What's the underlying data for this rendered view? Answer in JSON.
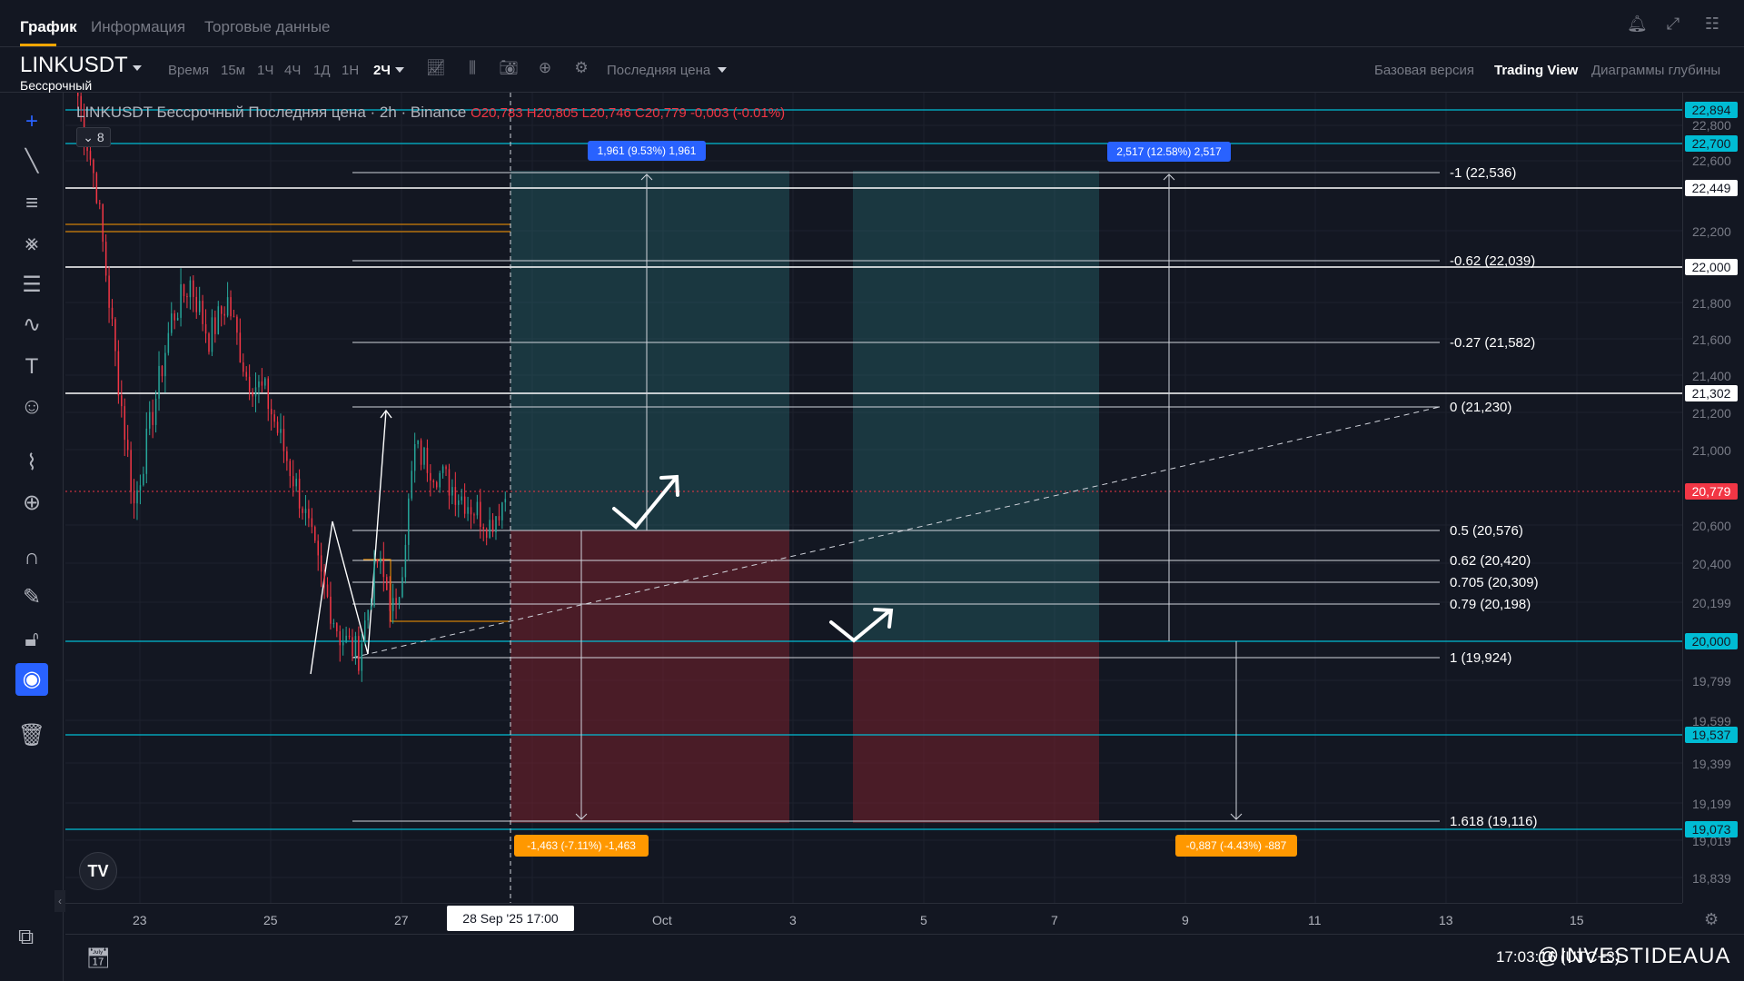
{
  "tabs": [
    "График",
    "Информация",
    "Торговые данные"
  ],
  "symbol": {
    "name": "LINKUSDT",
    "subtitle": "Бессрочный"
  },
  "toolbar": {
    "time_label": "Время",
    "intervals": [
      "15м",
      "1Ч",
      "4Ч",
      "1Д",
      "1Н",
      "2Ч"
    ],
    "selected_interval": "2Ч",
    "price_type": "Последняя цена",
    "views": [
      "Базовая версия",
      "Trading View",
      "Диаграммы глубины"
    ],
    "selected_view": "Trading View"
  },
  "legend": {
    "title": "LINKUSDT Бессрочный Последняя цена · 2h · Binance",
    "ohlc": "O20,783 H20,805 L20,746 C20,779 -0,003 (-0.01%)",
    "indicator_count": "8"
  },
  "price_axis": {
    "ticks": [
      "22,800",
      "22,600",
      "22,200",
      "21,800",
      "21,600",
      "21,400",
      "21,200",
      "21,000",
      "20,600",
      "20,400",
      "20,199",
      "19,799",
      "19,599",
      "19,399",
      "19,199",
      "19,019",
      "18,839"
    ],
    "tags": [
      {
        "label": "22,894",
        "kind": "cyan"
      },
      {
        "label": "22,700",
        "kind": "cyan"
      },
      {
        "label": "22,449",
        "kind": "white"
      },
      {
        "label": "22,000",
        "kind": "white"
      },
      {
        "label": "21,302",
        "kind": "white"
      },
      {
        "label": "20,779",
        "kind": "red"
      },
      {
        "label": "20,000",
        "kind": "cyan"
      },
      {
        "label": "19,537",
        "kind": "cyan"
      },
      {
        "label": "19,073",
        "kind": "cyan"
      }
    ]
  },
  "time_axis": {
    "labels": [
      "23",
      "25",
      "27",
      "Oct",
      "3",
      "5",
      "7",
      "9",
      "11",
      "13",
      "15"
    ],
    "cursor": "28 Sep '25   17:00"
  },
  "fib_levels": [
    {
      "label": "-1 (22,536)"
    },
    {
      "label": "-0.62 (22,039)"
    },
    {
      "label": "-0.27 (21,582)"
    },
    {
      "label": "0 (21,230)"
    },
    {
      "label": "0.5 (20,576)"
    },
    {
      "label": "0.62 (20,420)"
    },
    {
      "label": "0.705 (20,309)"
    },
    {
      "label": "0.79 (20,198)"
    },
    {
      "label": "1 (19,924)"
    },
    {
      "label": "1.618 (19,116)"
    }
  ],
  "position_labels": {
    "long1_target": "1,961 (9.53%) 1,961",
    "long2_target": "2,517 (12.58%) 2,517",
    "long1_stop": "-1,463 (-7.11%) -1,463",
    "long2_stop": "-0,887 (-4.43%) -887"
  },
  "bottom": {
    "time": "17:03:16 (UTC+3)",
    "watermark": "@INVESTIDEAUA"
  },
  "colors": {
    "background": "#131722",
    "cyan_line": "#00bcd4",
    "target_zone": "rgba(38,104,110,0.45)",
    "stop_zone": "rgba(120,32,44,0.55)",
    "bull": "#26a69a",
    "bear": "#f23645",
    "accent_blue": "#2962ff",
    "accent_orange": "#ff9800"
  },
  "icons": {
    "left_toolbar": [
      "crosshair-icon",
      "trend-line-icon",
      "fib-retracement-icon",
      "pattern-icon",
      "prediction-icon",
      "brush-icon",
      "text-icon",
      "emoji-icon",
      "ruler-icon",
      "zoom-in-icon",
      "magnet-icon",
      "pencil-lock-icon",
      "lock-icon",
      "eye-hide-icon",
      "trash-icon"
    ],
    "top_right": [
      "bell-icon",
      "collapse-icon",
      "grid-layout-icon"
    ]
  }
}
